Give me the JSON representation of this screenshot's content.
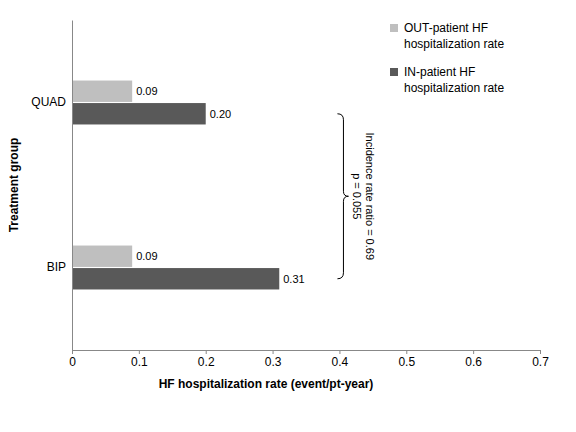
{
  "chart_data": {
    "type": "bar",
    "orientation": "horizontal",
    "categories": [
      "QUAD",
      "BIP"
    ],
    "series": [
      {
        "name": "OUT-patient HF hospitalization rate",
        "color": "#bfbfbf",
        "values": [
          0.09,
          0.09
        ]
      },
      {
        "name": "IN-patient HF hospitalization rate",
        "color": "#595959",
        "values": [
          0.2,
          0.31
        ]
      }
    ],
    "x_label": "HF hospitalization rate (event/pt-year)",
    "y_label": "Treatment group",
    "xlim": [
      0,
      0.7
    ],
    "xticks": [
      0,
      0.1,
      0.2,
      0.3,
      0.4,
      0.5,
      0.6,
      0.7
    ],
    "annotations": [
      "Incidence rate ratio = 0.69",
      "p = 0.055"
    ],
    "data_labels": true,
    "legend": "top-right",
    "grid": false
  }
}
